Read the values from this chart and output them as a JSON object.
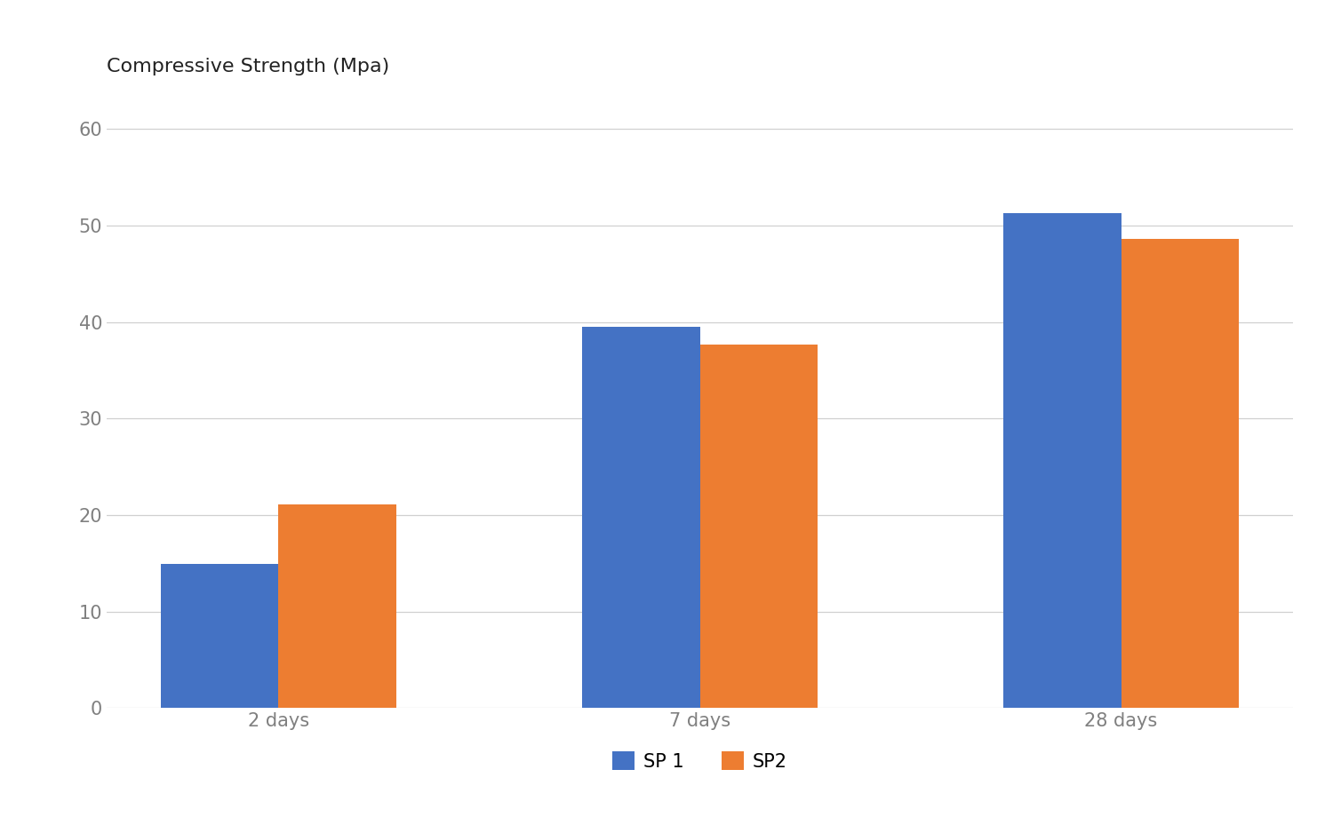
{
  "categories": [
    "2 days",
    "7 days",
    "28 days"
  ],
  "sp1_values": [
    14.9,
    39.5,
    51.3
  ],
  "sp2_values": [
    21.1,
    37.7,
    48.6
  ],
  "sp1_color": "#4472C4",
  "sp2_color": "#ED7D31",
  "ylabel": "Compressive Strength (Mpa)",
  "ylim": [
    0,
    63
  ],
  "yticks": [
    0,
    10,
    20,
    30,
    40,
    50,
    60
  ],
  "legend_labels": [
    "SP 1",
    "SP2"
  ],
  "background_color": "#ffffff",
  "bar_width": 0.28,
  "ylabel_fontsize": 16,
  "tick_fontsize": 15,
  "legend_fontsize": 15,
  "grid_color": "#d0d0d0",
  "tick_color": "#808080"
}
